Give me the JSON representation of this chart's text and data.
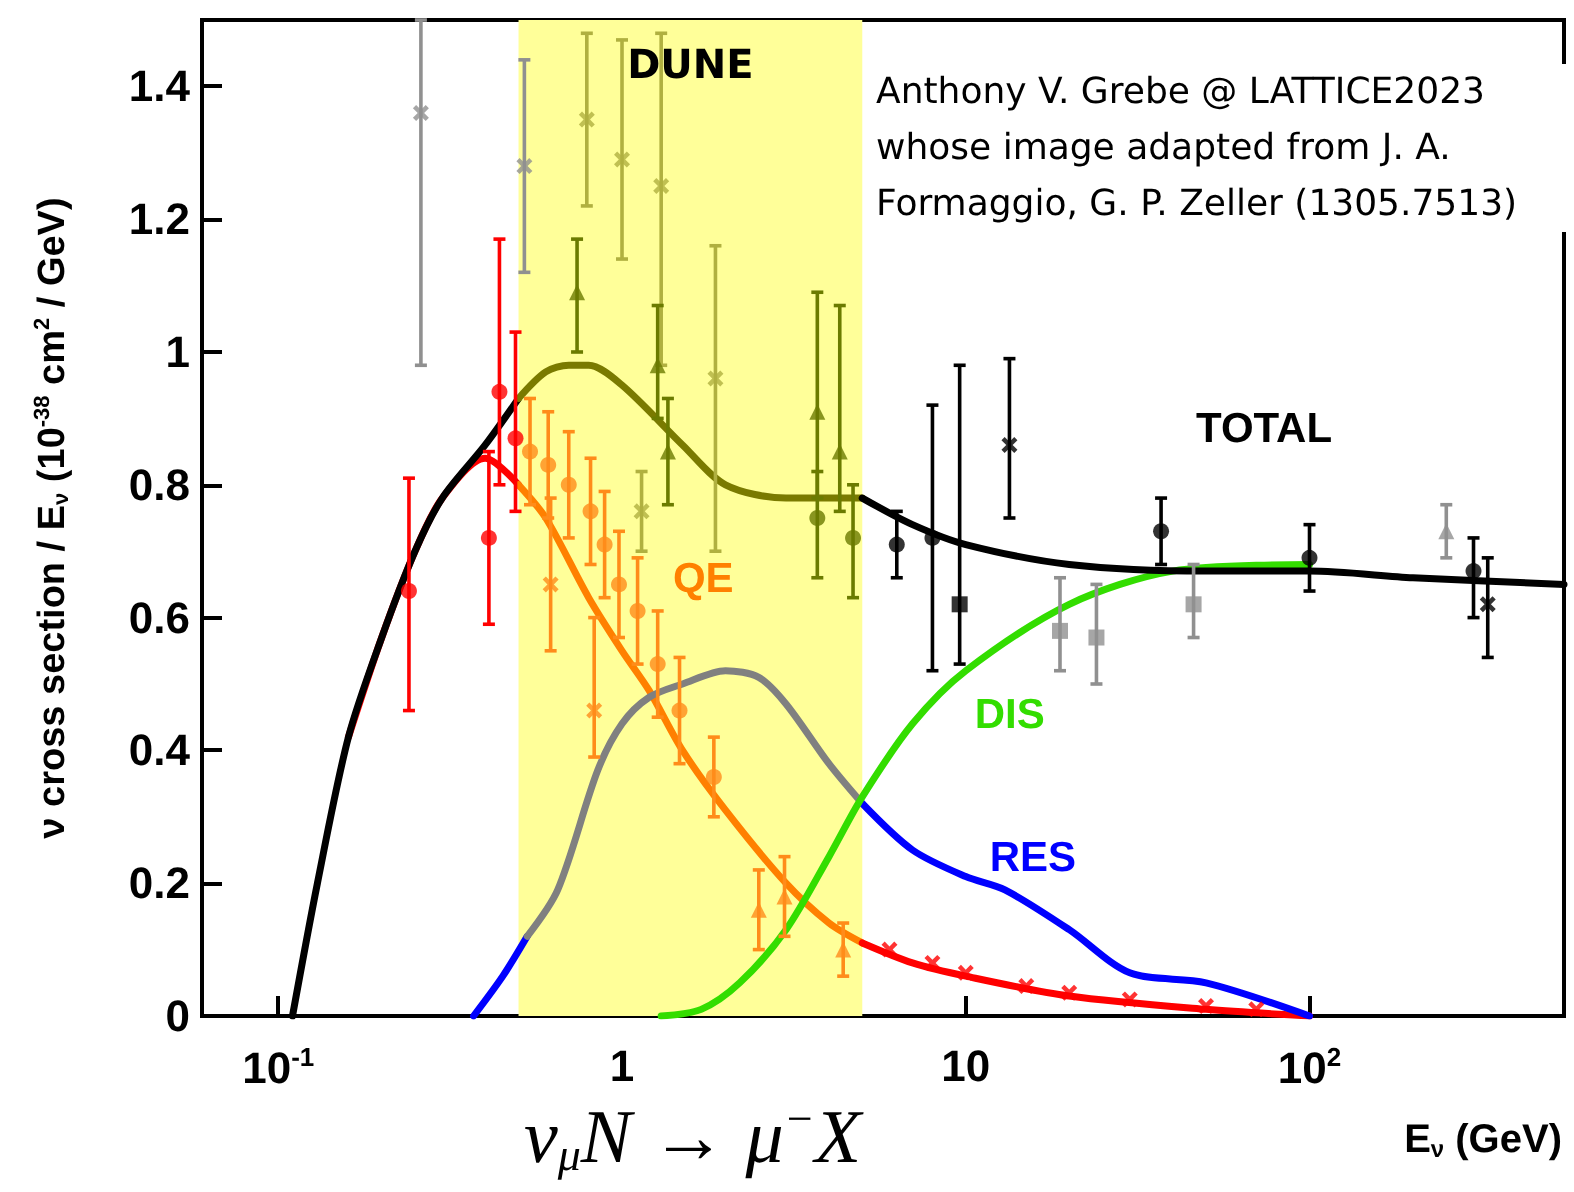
{
  "chart_data": {
    "type": "line",
    "xlabel": "E$_{ν}$ (GeV)",
    "ylabel": "ν cross section / E$_{ν}$ (10$^{-38}$ cm$^{2}$ / GeV)",
    "log": "x",
    "xlim": [
      0.06,
      550
    ],
    "ylim": [
      0,
      1.5
    ],
    "xticks": [
      {
        "value": 0.1,
        "label": "10$^{-1}$"
      },
      1,
      10,
      {
        "value": 100,
        "label": "10$^{2}$"
      }
    ],
    "yticks": [
      0,
      0.2,
      0.4,
      0.6,
      0.8,
      1,
      1.2,
      1.4
    ],
    "bands": [
      {
        "axis": "x",
        "from": 0.5,
        "to": 5,
        "label": "DUNE",
        "color": "#ffff99"
      }
    ],
    "annotations": [
      "Anthony V. Grebe @ LATTICE2023 whose image adapted from J. A. Formaggio, G. P. Zeller (1305.7513)",
      "ν$_{μ}$N → μ$^{−}$X"
    ],
    "series": [
      {
        "color": "#ff0000",
        "x": [
          0.16,
          0.2,
          0.25,
          0.3,
          0.4,
          0.5
        ],
        "values": [
          0.42,
          0.57,
          0.7,
          0.78,
          0.84,
          0.8
        ]
      },
      {
        "name": "QE",
        "color": "#ff8000",
        "x": [
          0.5,
          0.6,
          0.8,
          1,
          1.2,
          1.5,
          2,
          3,
          4,
          5
        ],
        "values": [
          0.8,
          0.75,
          0.63,
          0.55,
          0.49,
          0.4,
          0.31,
          0.2,
          0.14,
          0.11
        ]
      },
      {
        "color": "#ff0000",
        "x": [
          5,
          7,
          10,
          20,
          50,
          100
        ],
        "values": [
          0.11,
          0.08,
          0.06,
          0.03,
          0.01,
          0
        ]
      },
      {
        "color": "#0000ff",
        "x": [
          0.37,
          0.45,
          0.53
        ],
        "values": [
          0,
          0.06,
          0.12
        ]
      },
      {
        "color": "#808080",
        "x": [
          0.53,
          0.65,
          0.85,
          1,
          1.2,
          1.5,
          2,
          2.5,
          3,
          4,
          5
        ],
        "values": [
          0.12,
          0.19,
          0.37,
          0.44,
          0.48,
          0.5,
          0.52,
          0.51,
          0.47,
          0.38,
          0.32
        ]
      },
      {
        "name": "RES",
        "color": "#0000ff",
        "x": [
          5,
          7,
          10,
          13,
          20,
          30,
          50,
          100
        ],
        "values": [
          0.32,
          0.25,
          0.21,
          0.19,
          0.13,
          0.065,
          0.05,
          0
        ]
      },
      {
        "name": "DIS",
        "color": "#33dd00",
        "x": [
          1.3,
          1.7,
          2.2,
          3,
          4,
          5,
          7,
          10,
          20,
          40,
          100
        ],
        "values": [
          0,
          0.01,
          0.05,
          0.13,
          0.24,
          0.33,
          0.44,
          0.52,
          0.62,
          0.67,
          0.68
        ]
      },
      {
        "color": "#000000",
        "x": [
          0.11,
          0.13,
          0.16,
          0.2,
          0.25,
          0.3,
          0.4,
          0.5
        ],
        "values": [
          0,
          0.2,
          0.42,
          0.57,
          0.7,
          0.78,
          0.86,
          0.93
        ]
      },
      {
        "color": "#7a7a00",
        "x": [
          0.5,
          0.6,
          0.7,
          0.8,
          1,
          1.5,
          2,
          3,
          5
        ],
        "values": [
          0.93,
          0.97,
          0.98,
          0.98,
          0.95,
          0.86,
          0.8,
          0.78,
          0.78
        ]
      },
      {
        "name": "TOTAL",
        "color": "#000000",
        "x": [
          5,
          7,
          10,
          20,
          50,
          100,
          200,
          550
        ],
        "values": [
          0.78,
          0.74,
          0.71,
          0.68,
          0.67,
          0.67,
          0.66,
          0.65
        ]
      },
      {
        "type": "scatter",
        "marker": "circle",
        "color": "#ff0000",
        "x": [
          0.44,
          0.49,
          0.24,
          0.41
        ],
        "values": [
          0.94,
          0.87,
          0.64,
          0.72
        ],
        "errors": [
          [
            0.8,
            1.17
          ],
          [
            0.76,
            1.03
          ],
          [
            0.46,
            0.81
          ],
          [
            0.59,
            0.85
          ]
        ]
      },
      {
        "type": "scatter",
        "marker": "cross",
        "color": "#909090",
        "x": [
          0.26,
          0.52
        ],
        "values": [
          1.36,
          1.28
        ],
        "errors": [
          [
            0.98,
            1.5
          ],
          [
            1.12,
            1.44
          ]
        ]
      },
      {
        "type": "scatter",
        "marker": "cross",
        "color": "#b0b040",
        "x": [
          0.79,
          1,
          1.3,
          1.87,
          1.14
        ],
        "values": [
          1.35,
          1.29,
          1.25,
          0.96,
          0.76
        ],
        "errors": [
          [
            1.22,
            1.48
          ],
          [
            1.14,
            1.47
          ],
          [
            0.98,
            1.48
          ],
          [
            0.7,
            1.16
          ],
          [
            0.7,
            0.82
          ]
        ]
      },
      {
        "type": "scatter",
        "marker": "triangle",
        "color": "#6b7b00",
        "x": [
          0.74,
          1.27,
          1.36,
          3.7,
          4.3
        ],
        "values": [
          1.09,
          0.98,
          0.85,
          0.91,
          0.85
        ],
        "errors": [
          [
            1,
            1.17
          ],
          [
            0.9,
            1.07
          ],
          [
            0.77,
            0.93
          ],
          [
            0.78,
            1.09
          ],
          [
            0.76,
            1.07
          ]
        ]
      },
      {
        "type": "scatter",
        "marker": "circle",
        "color": "#6b7b00",
        "x": [
          3.7,
          4.7
        ],
        "values": [
          0.75,
          0.72
        ],
        "errors": [
          [
            0.66,
            0.82
          ],
          [
            0.63,
            0.8
          ]
        ]
      },
      {
        "type": "scatter",
        "marker": "circle",
        "color": "#ff8c1a",
        "x": [
          0.54,
          0.61,
          0.7,
          0.81,
          0.89,
          0.98,
          1.11,
          1.27,
          1.47,
          1.85
        ],
        "values": [
          0.85,
          0.83,
          0.8,
          0.76,
          0.71,
          0.65,
          0.61,
          0.53,
          0.46,
          0.36
        ],
        "errors": [
          [
            0.77,
            0.93
          ],
          [
            0.75,
            0.91
          ],
          [
            0.72,
            0.88
          ],
          [
            0.68,
            0.84
          ],
          [
            0.63,
            0.79
          ],
          [
            0.57,
            0.73
          ],
          [
            0.53,
            0.69
          ],
          [
            0.45,
            0.61
          ],
          [
            0.38,
            0.54
          ],
          [
            0.3,
            0.42
          ]
        ]
      },
      {
        "type": "scatter",
        "marker": "cross",
        "color": "#ff8c1a",
        "x": [
          0.62,
          0.83
        ],
        "values": [
          0.65,
          0.46
        ],
        "errors": [
          [
            0.55,
            0.78
          ],
          [
            0.39,
            0.6
          ]
        ]
      },
      {
        "type": "scatter",
        "marker": "triangle",
        "color": "#ff8c1a",
        "x": [
          2.5,
          2.97,
          4.4
        ],
        "values": [
          0.16,
          0.18,
          0.1
        ],
        "errors": [
          [
            0.1,
            0.22
          ],
          [
            0.12,
            0.24
          ],
          [
            0.06,
            0.14
          ]
        ]
      },
      {
        "type": "scatter",
        "marker": "cross",
        "color": "#ff0000",
        "x": [
          6,
          8,
          10,
          15,
          20,
          30,
          50,
          70
        ],
        "values": [
          0.1,
          0.08,
          0.065,
          0.045,
          0.035,
          0.025,
          0.015,
          0.01
        ]
      },
      {
        "type": "scatter",
        "marker": "circle",
        "color": "#000000",
        "x": [
          6.3,
          8,
          37,
          100,
          300
        ],
        "values": [
          0.71,
          0.72,
          0.73,
          0.69,
          0.67
        ],
        "errors": [
          [
            0.66,
            0.76
          ],
          [
            0.52,
            0.92
          ],
          [
            0.68,
            0.78
          ],
          [
            0.64,
            0.74
          ],
          [
            0.6,
            0.72
          ]
        ]
      },
      {
        "type": "scatter",
        "marker": "square",
        "color": "#000000",
        "x": [
          9.6
        ],
        "values": [
          0.62
        ],
        "errors": [
          [
            0.53,
            0.98
          ]
        ]
      },
      {
        "type": "scatter",
        "marker": "cross",
        "color": "#000000",
        "x": [
          13.4,
          330
        ],
        "values": [
          0.86,
          0.62
        ],
        "errors": [
          [
            0.75,
            0.99
          ],
          [
            0.54,
            0.69
          ]
        ]
      },
      {
        "type": "scatter",
        "marker": "square",
        "color": "#909090",
        "x": [
          18.8,
          24,
          46
        ],
        "values": [
          0.58,
          0.57,
          0.62
        ],
        "errors": [
          [
            0.52,
            0.66
          ],
          [
            0.5,
            0.65
          ],
          [
            0.57,
            0.68
          ]
        ]
      },
      {
        "type": "scatter",
        "marker": "triangle",
        "color": "#909090",
        "x": [
          250
        ],
        "values": [
          0.73
        ],
        "errors": [
          [
            0.69,
            0.77
          ]
        ]
      }
    ]
  }
}
